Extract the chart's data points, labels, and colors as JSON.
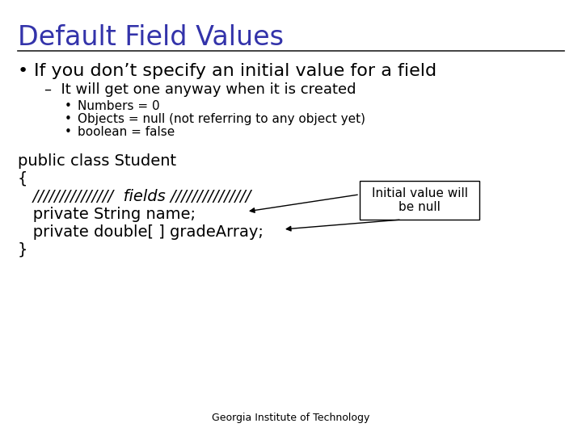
{
  "title": "Default Field Values",
  "title_color": "#3333aa",
  "background_color": "#ffffff",
  "title_fontsize": 24,
  "bullet1": "If you don’t specify an initial value for a field",
  "sub1": "–  It will get one anyway when it is created",
  "sub_bullet1": "Numbers = 0",
  "sub_bullet2": "Objects = null (not referring to any object yet)",
  "sub_bullet3": "boolean = false",
  "code_line1": "public class Student",
  "code_line2": "{",
  "code_line3": "   ///////////////  fields ///////////////",
  "code_line4": "   private String name;",
  "code_line5": "   private double[ ] gradeArray;",
  "code_line6": "}",
  "annotation_text": "Initial value will\nbe null",
  "footer": "Georgia Institute of Technology",
  "text_color": "#000000",
  "code_font": "DejaVu Sans Mono",
  "annotation_box_color": "#ffffff",
  "annotation_border_color": "#000000",
  "fig_width": 7.2,
  "fig_height": 5.4,
  "dpi": 100
}
